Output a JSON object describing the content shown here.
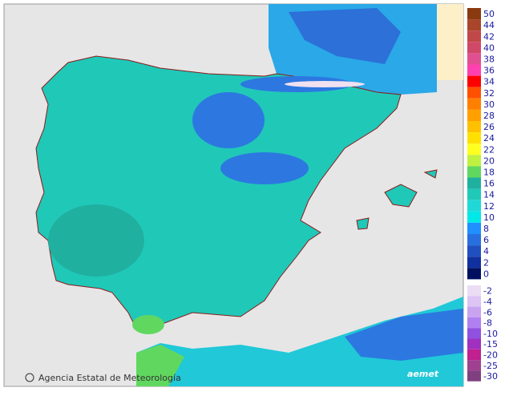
{
  "credit": "Agencia Estatal de Meteorología",
  "logo": "aemet",
  "legend": {
    "positive": {
      "labels": [
        50,
        44,
        42,
        40,
        38,
        36,
        34,
        32,
        30,
        28,
        26,
        24,
        22,
        20,
        18,
        16,
        14,
        12,
        10,
        8,
        6,
        4,
        2,
        0
      ],
      "colors": [
        "#8b3a10",
        "#a8452a",
        "#c04848",
        "#d04868",
        "#e05090",
        "#ff40b0",
        "#ff0000",
        "#ff5000",
        "#ff8000",
        "#ffa000",
        "#ffc000",
        "#ffe000",
        "#ffff20",
        "#c0f040",
        "#60d860",
        "#20b0a0",
        "#20c8b8",
        "#20d8d8",
        "#00e8e8",
        "#2090ff",
        "#2870e0",
        "#2050c0",
        "#1030a0",
        "#001060"
      ]
    },
    "negative": {
      "labels": [
        -2,
        -4,
        -6,
        -8,
        -10,
        -15,
        -20,
        -25,
        -30
      ],
      "colors": [
        "#ecdcf4",
        "#dcc4f4",
        "#c8a4f0",
        "#b080f0",
        "#9050e0",
        "#a030c0",
        "#c02090",
        "#a04090",
        "#804080"
      ]
    }
  }
}
